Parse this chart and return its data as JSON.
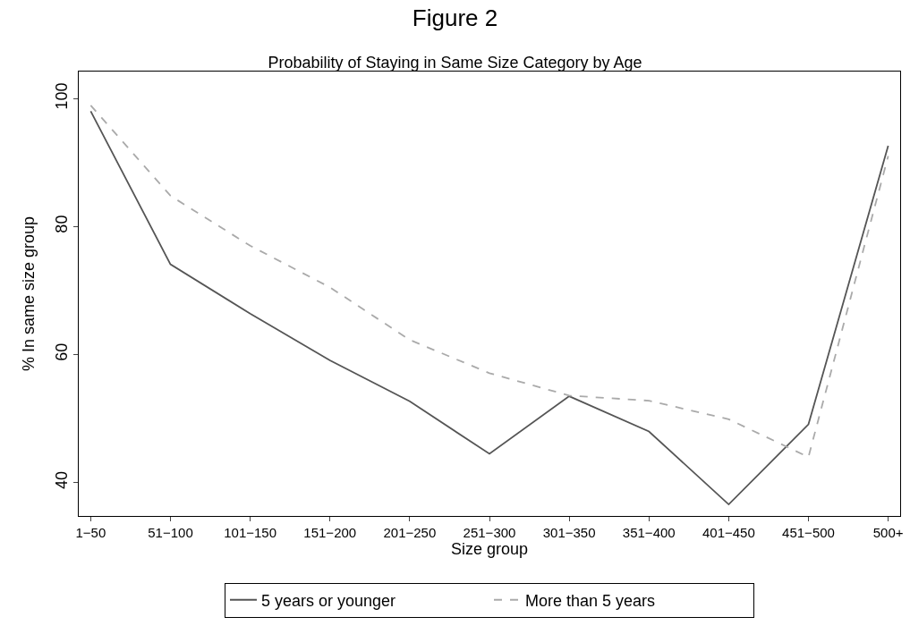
{
  "chart_data": {
    "type": "line",
    "title": "Figure 2",
    "subtitle": "Probability of Staying in Same Size Category by Age",
    "xlabel": "Size group",
    "ylabel": "% In same size group",
    "categories": [
      "1−50",
      "51−100",
      "101−150",
      "151−200",
      "201−250",
      "251−300",
      "301−350",
      "351−400",
      "401−450",
      "451−500",
      "500+"
    ],
    "series": [
      {
        "name": "5 years or younger",
        "color": "#555555",
        "line_style": "solid",
        "values": [
          98.0,
          74.1,
          66.4,
          59.1,
          52.7,
          44.5,
          53.5,
          48.0,
          36.6,
          49.1,
          92.6
        ]
      },
      {
        "name": "More than 5 years",
        "color": "#aaaaaa",
        "line_style": "dashed",
        "values": [
          98.9,
          84.8,
          77.0,
          70.5,
          62.3,
          57.1,
          53.6,
          52.8,
          49.9,
          44.0,
          91.0
        ]
      }
    ],
    "ylim": [
      34.8,
      104.2
    ],
    "yticks": [
      40,
      60,
      80,
      100
    ],
    "legend": "bottom",
    "marker": "none"
  }
}
